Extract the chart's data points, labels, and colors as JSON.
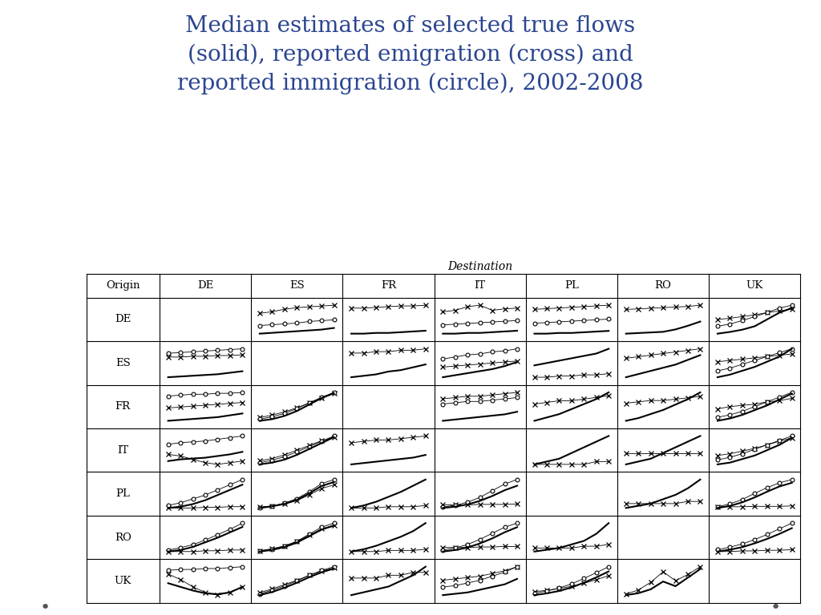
{
  "title_line1": "Median estimates of selected true flows",
  "title_line2": "(solid), reported emigration (cross) and",
  "title_line3": "reported immigration (circle), 2002-2008",
  "title_color": "#2B4590",
  "destination_label": "Destination",
  "countries": [
    "DE",
    "ES",
    "FR",
    "IT",
    "PL",
    "RO",
    "UK"
  ],
  "background_color": "#ffffff",
  "cells": {
    "DE_ES": {
      "solid": [
        0.45,
        0.46,
        0.47,
        0.48,
        0.49,
        0.5,
        0.52
      ],
      "cross": [
        0.7,
        0.72,
        0.75,
        0.77,
        0.78,
        0.79,
        0.8
      ],
      "circle": [
        0.55,
        0.56,
        0.57,
        0.58,
        0.6,
        0.61,
        0.62
      ]
    },
    "DE_FR": {
      "solid": [
        0.3,
        0.3,
        0.31,
        0.31,
        0.32,
        0.33,
        0.34
      ],
      "cross": [
        0.65,
        0.65,
        0.66,
        0.67,
        0.68,
        0.68,
        0.69
      ],
      "circle": null
    },
    "DE_IT": {
      "solid": [
        0.28,
        0.28,
        0.29,
        0.29,
        0.3,
        0.31,
        0.32
      ],
      "cross": [
        0.58,
        0.6,
        0.65,
        0.67,
        0.6,
        0.62,
        0.63
      ],
      "circle": [
        0.4,
        0.41,
        0.42,
        0.43,
        0.44,
        0.45,
        0.46
      ]
    },
    "DE_PL": {
      "solid": [
        0.2,
        0.2,
        0.21,
        0.21,
        0.22,
        0.23,
        0.24
      ],
      "cross": [
        0.55,
        0.56,
        0.57,
        0.58,
        0.59,
        0.6,
        0.61
      ],
      "circle": [
        0.35,
        0.36,
        0.37,
        0.38,
        0.39,
        0.4,
        0.41
      ]
    },
    "DE_RO": {
      "solid": [
        0.15,
        0.16,
        0.17,
        0.18,
        0.22,
        0.28,
        0.35
      ],
      "cross": [
        0.55,
        0.56,
        0.57,
        0.58,
        0.59,
        0.6,
        0.62
      ],
      "circle": null
    },
    "DE_UK": {
      "solid": [
        0.35,
        0.38,
        0.42,
        0.48,
        0.6,
        0.72,
        0.8
      ],
      "cross": [
        0.6,
        0.62,
        0.65,
        0.68,
        0.72,
        0.75,
        0.78
      ],
      "circle": [
        0.48,
        0.52,
        0.58,
        0.65,
        0.72,
        0.8,
        0.85
      ]
    },
    "ES_DE": {
      "solid": [
        0.28,
        0.29,
        0.3,
        0.31,
        0.32,
        0.34,
        0.36
      ],
      "cross": [
        0.55,
        0.55,
        0.56,
        0.56,
        0.57,
        0.57,
        0.58
      ],
      "circle": [
        0.6,
        0.61,
        0.62,
        0.63,
        0.64,
        0.65,
        0.66
      ]
    },
    "ES_FR": {
      "solid": [
        0.28,
        0.29,
        0.3,
        0.32,
        0.33,
        0.35,
        0.37
      ],
      "cross": [
        0.45,
        0.45,
        0.46,
        0.46,
        0.47,
        0.47,
        0.48
      ],
      "circle": null
    },
    "ES_IT": {
      "solid": [
        0.32,
        0.34,
        0.36,
        0.38,
        0.4,
        0.43,
        0.47
      ],
      "cross": [
        0.42,
        0.43,
        0.44,
        0.45,
        0.46,
        0.47,
        0.48
      ],
      "circle": [
        0.5,
        0.52,
        0.54,
        0.55,
        0.57,
        0.58,
        0.6
      ]
    },
    "ES_PL": {
      "solid": [
        0.38,
        0.4,
        0.42,
        0.44,
        0.46,
        0.48,
        0.52
      ],
      "cross": [
        0.28,
        0.28,
        0.29,
        0.29,
        0.3,
        0.3,
        0.31
      ],
      "circle": null
    },
    "ES_RO": {
      "solid": [
        0.3,
        0.32,
        0.34,
        0.36,
        0.38,
        0.41,
        0.44
      ],
      "cross": [
        0.42,
        0.43,
        0.44,
        0.45,
        0.46,
        0.47,
        0.48
      ],
      "circle": null
    },
    "ES_UK": {
      "solid": [
        0.3,
        0.32,
        0.35,
        0.38,
        0.42,
        0.46,
        0.52
      ],
      "cross": [
        0.42,
        0.43,
        0.44,
        0.45,
        0.46,
        0.47,
        0.48
      ],
      "circle": [
        0.35,
        0.37,
        0.4,
        0.43,
        0.46,
        0.49,
        0.52
      ]
    },
    "FR_DE": {
      "solid": [
        0.28,
        0.29,
        0.3,
        0.31,
        0.32,
        0.34,
        0.36
      ],
      "cross": [
        0.42,
        0.43,
        0.44,
        0.45,
        0.46,
        0.47,
        0.48
      ],
      "circle": [
        0.55,
        0.56,
        0.57,
        0.57,
        0.58,
        0.58,
        0.59
      ]
    },
    "FR_ES": {
      "solid": [
        0.18,
        0.2,
        0.24,
        0.3,
        0.38,
        0.46,
        0.52
      ],
      "cross": [
        0.22,
        0.25,
        0.29,
        0.34,
        0.4,
        0.46,
        0.52
      ],
      "circle": [
        0.2,
        0.23,
        0.27,
        0.33,
        0.4,
        0.47,
        0.53
      ]
    },
    "FR_IT": {
      "solid": [
        0.25,
        0.26,
        0.27,
        0.28,
        0.29,
        0.3,
        0.32
      ],
      "cross": [
        0.42,
        0.43,
        0.44,
        0.44,
        0.45,
        0.46,
        0.47
      ],
      "circle": [
        0.38,
        0.39,
        0.4,
        0.4,
        0.41,
        0.42,
        0.43
      ]
    },
    "FR_PL": {
      "solid": [
        0.25,
        0.27,
        0.29,
        0.32,
        0.35,
        0.38,
        0.42
      ],
      "cross": [
        0.35,
        0.36,
        0.37,
        0.37,
        0.38,
        0.39,
        0.4
      ],
      "circle": null
    },
    "FR_RO": {
      "solid": [
        0.22,
        0.24,
        0.27,
        0.3,
        0.34,
        0.38,
        0.43
      ],
      "cross": [
        0.35,
        0.36,
        0.37,
        0.37,
        0.38,
        0.39,
        0.4
      ],
      "circle": null
    },
    "FR_UK": {
      "solid": [
        0.25,
        0.27,
        0.3,
        0.34,
        0.38,
        0.43,
        0.48
      ],
      "cross": [
        0.35,
        0.37,
        0.38,
        0.39,
        0.41,
        0.42,
        0.44
      ],
      "circle": [
        0.28,
        0.3,
        0.33,
        0.37,
        0.41,
        0.45,
        0.49
      ]
    },
    "IT_DE": {
      "solid": [
        0.32,
        0.34,
        0.35,
        0.36,
        0.38,
        0.4,
        0.43
      ],
      "cross": [
        0.4,
        0.38,
        0.34,
        0.3,
        0.28,
        0.3,
        0.32
      ],
      "circle": [
        0.52,
        0.54,
        0.55,
        0.56,
        0.58,
        0.6,
        0.62
      ]
    },
    "IT_ES": {
      "solid": [
        0.12,
        0.15,
        0.2,
        0.28,
        0.38,
        0.48,
        0.58
      ],
      "cross": [
        0.18,
        0.22,
        0.28,
        0.36,
        0.44,
        0.52,
        0.58
      ],
      "circle": [
        0.15,
        0.19,
        0.25,
        0.33,
        0.42,
        0.51,
        0.6
      ]
    },
    "IT_FR": {
      "solid": [
        0.22,
        0.23,
        0.24,
        0.25,
        0.26,
        0.27,
        0.29
      ],
      "cross": [
        0.38,
        0.39,
        0.4,
        0.4,
        0.41,
        0.42,
        0.43
      ],
      "circle": null
    },
    "IT_PL": {
      "solid": [
        0.18,
        0.19,
        0.2,
        0.22,
        0.24,
        0.26,
        0.28
      ],
      "cross": [
        0.18,
        0.18,
        0.18,
        0.18,
        0.18,
        0.19,
        0.19
      ],
      "circle": null
    },
    "IT_RO": {
      "solid": [
        0.18,
        0.19,
        0.2,
        0.22,
        0.24,
        0.26,
        0.28
      ],
      "cross": [
        0.22,
        0.22,
        0.22,
        0.22,
        0.22,
        0.22,
        0.22
      ],
      "circle": null
    },
    "IT_UK": {
      "solid": [
        0.2,
        0.22,
        0.26,
        0.3,
        0.36,
        0.42,
        0.5
      ],
      "cross": [
        0.3,
        0.32,
        0.35,
        0.38,
        0.42,
        0.46,
        0.5
      ],
      "circle": [
        0.25,
        0.28,
        0.32,
        0.37,
        0.42,
        0.47,
        0.52
      ]
    },
    "PL_DE": {
      "solid": [
        0.18,
        0.2,
        0.24,
        0.3,
        0.38,
        0.46,
        0.54
      ],
      "cross": [
        0.18,
        0.18,
        0.18,
        0.19,
        0.19,
        0.2,
        0.2
      ],
      "circle": [
        0.22,
        0.26,
        0.32,
        0.38,
        0.46,
        0.54,
        0.62
      ]
    },
    "PL_ES": {
      "solid": [
        0.08,
        0.12,
        0.18,
        0.28,
        0.44,
        0.62,
        0.72
      ],
      "cross": [
        0.1,
        0.13,
        0.18,
        0.26,
        0.4,
        0.56,
        0.65
      ],
      "circle": [
        0.09,
        0.13,
        0.2,
        0.31,
        0.48,
        0.68,
        0.78
      ]
    },
    "PL_FR": {
      "solid": [
        0.15,
        0.17,
        0.2,
        0.24,
        0.28,
        0.33,
        0.38
      ],
      "cross": [
        0.15,
        0.15,
        0.15,
        0.16,
        0.16,
        0.16,
        0.17
      ],
      "circle": null
    },
    "PL_IT": {
      "solid": [
        0.08,
        0.11,
        0.16,
        0.24,
        0.35,
        0.48,
        0.58
      ],
      "cross": [
        0.15,
        0.15,
        0.15,
        0.16,
        0.16,
        0.16,
        0.17
      ],
      "circle": [
        0.1,
        0.14,
        0.21,
        0.32,
        0.47,
        0.62,
        0.72
      ]
    },
    "PL_RO": {
      "solid": [
        0.1,
        0.11,
        0.12,
        0.14,
        0.16,
        0.19,
        0.23
      ],
      "cross": [
        0.12,
        0.12,
        0.12,
        0.12,
        0.12,
        0.13,
        0.13
      ],
      "circle": null
    },
    "PL_UK": {
      "solid": [
        0.12,
        0.17,
        0.26,
        0.38,
        0.52,
        0.65,
        0.74
      ],
      "cross": [
        0.15,
        0.15,
        0.15,
        0.16,
        0.16,
        0.16,
        0.17
      ],
      "circle": [
        0.15,
        0.22,
        0.33,
        0.48,
        0.62,
        0.74,
        0.82
      ]
    },
    "RO_DE": {
      "solid": [
        0.18,
        0.2,
        0.24,
        0.3,
        0.36,
        0.43,
        0.5
      ],
      "cross": [
        0.18,
        0.18,
        0.18,
        0.19,
        0.19,
        0.2,
        0.2
      ],
      "circle": [
        0.2,
        0.23,
        0.27,
        0.33,
        0.4,
        0.47,
        0.55
      ]
    },
    "RO_ES": {
      "solid": [
        0.08,
        0.12,
        0.19,
        0.3,
        0.46,
        0.62,
        0.72
      ],
      "cross": [
        0.1,
        0.15,
        0.22,
        0.33,
        0.48,
        0.64,
        0.73
      ],
      "circle": [
        0.09,
        0.13,
        0.21,
        0.33,
        0.51,
        0.68,
        0.78
      ]
    },
    "RO_FR": {
      "solid": [
        0.15,
        0.17,
        0.2,
        0.24,
        0.28,
        0.33,
        0.4
      ],
      "cross": [
        0.15,
        0.15,
        0.15,
        0.16,
        0.16,
        0.16,
        0.17
      ],
      "circle": null
    },
    "RO_IT": {
      "solid": [
        0.12,
        0.15,
        0.2,
        0.28,
        0.38,
        0.5,
        0.6
      ],
      "cross": [
        0.2,
        0.2,
        0.2,
        0.21,
        0.21,
        0.22,
        0.22
      ],
      "circle": [
        0.15,
        0.19,
        0.26,
        0.36,
        0.48,
        0.6,
        0.68
      ]
    },
    "RO_PL": {
      "solid": [
        0.08,
        0.09,
        0.1,
        0.12,
        0.14,
        0.18,
        0.24
      ],
      "cross": [
        0.1,
        0.1,
        0.1,
        0.1,
        0.11,
        0.11,
        0.12
      ],
      "circle": null
    },
    "RO_UK": {
      "solid": [
        0.15,
        0.18,
        0.22,
        0.28,
        0.35,
        0.43,
        0.52
      ],
      "cross": [
        0.15,
        0.15,
        0.16,
        0.16,
        0.17,
        0.17,
        0.18
      ],
      "circle": [
        0.18,
        0.22,
        0.27,
        0.34,
        0.42,
        0.51,
        0.6
      ]
    },
    "UK_DE": {
      "solid": [
        0.28,
        0.24,
        0.2,
        0.17,
        0.16,
        0.18,
        0.24
      ],
      "cross": [
        0.38,
        0.32,
        0.24,
        0.18,
        0.15,
        0.18,
        0.24
      ],
      "circle": [
        0.42,
        0.43,
        0.43,
        0.44,
        0.44,
        0.45,
        0.46
      ]
    },
    "UK_ES": {
      "solid": [
        0.14,
        0.19,
        0.26,
        0.34,
        0.43,
        0.51,
        0.57
      ],
      "cross": [
        0.18,
        0.24,
        0.31,
        0.38,
        0.46,
        0.53,
        0.58
      ],
      "circle": [
        0.16,
        0.22,
        0.29,
        0.37,
        0.46,
        0.54,
        0.6
      ]
    },
    "UK_FR": {
      "solid": [
        0.14,
        0.15,
        0.16,
        0.17,
        0.19,
        0.21,
        0.24
      ],
      "cross": [
        0.2,
        0.2,
        0.2,
        0.21,
        0.21,
        0.22,
        0.22
      ],
      "circle": null
    },
    "UK_IT": {
      "solid": [
        0.14,
        0.15,
        0.16,
        0.18,
        0.2,
        0.22,
        0.26
      ],
      "cross": [
        0.25,
        0.26,
        0.27,
        0.28,
        0.3,
        0.32,
        0.35
      ],
      "circle": [
        0.2,
        0.21,
        0.23,
        0.25,
        0.28,
        0.31,
        0.35
      ]
    },
    "UK_PL": {
      "solid": [
        0.14,
        0.17,
        0.21,
        0.27,
        0.35,
        0.44,
        0.54
      ],
      "cross": [
        0.2,
        0.22,
        0.25,
        0.29,
        0.34,
        0.4,
        0.47
      ],
      "circle": [
        0.17,
        0.21,
        0.26,
        0.33,
        0.42,
        0.52,
        0.62
      ]
    },
    "UK_RO": {
      "solid": [
        0.05,
        0.1,
        0.2,
        0.4,
        0.28,
        0.5,
        0.72
      ],
      "cross": [
        0.08,
        0.18,
        0.38,
        0.65,
        0.42,
        0.58,
        0.78
      ],
      "circle": null
    }
  }
}
